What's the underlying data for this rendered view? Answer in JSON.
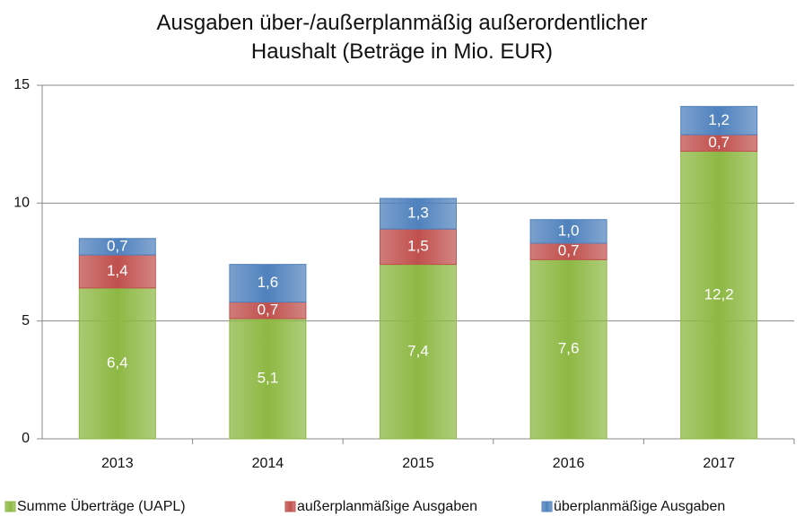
{
  "chart_data": {
    "type": "stacked_bar",
    "title": "Ausgaben über-/außerplanmäßig außerordentlicher Haushalt (Beträge in Mio. EUR)",
    "categories": [
      "2013",
      "2014",
      "2015",
      "2016",
      "2017"
    ],
    "series": [
      {
        "name": "Summe Überträge (UAPL)",
        "color": "#8db843",
        "values": [
          6.4,
          5.1,
          7.4,
          7.6,
          12.2
        ],
        "value_labels": [
          "6,4",
          "5,1",
          "7,4",
          "7,6",
          "12,2"
        ]
      },
      {
        "name": "außerplanmäßige Ausgaben",
        "color": "#c0504d",
        "values": [
          1.4,
          0.7,
          1.5,
          0.7,
          0.7
        ],
        "value_labels": [
          "1,4",
          "0,7",
          "1,5",
          "0,7",
          "0,7"
        ]
      },
      {
        "name": "überplanmäßige Ausgaben",
        "color": "#4f81bd",
        "values": [
          0.7,
          1.6,
          1.3,
          1.0,
          1.2
        ],
        "value_labels": [
          "0,7",
          "1,6",
          "1,3",
          "1,0",
          "1,2"
        ]
      }
    ],
    "ylim": [
      0,
      15
    ],
    "yticks": [
      0,
      5,
      10,
      15
    ],
    "grid": true,
    "legend": "bottom"
  }
}
